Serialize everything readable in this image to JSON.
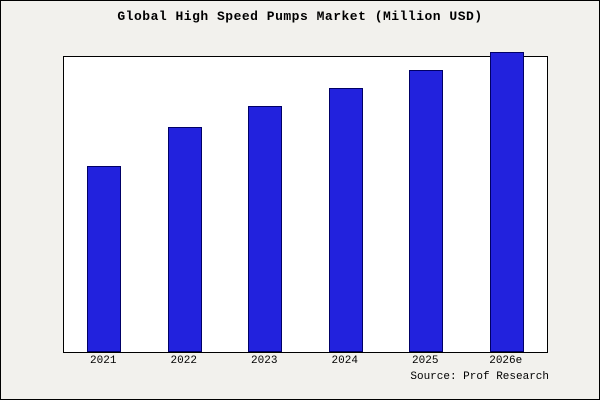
{
  "chart_data": {
    "type": "bar",
    "title": "Global High Speed Pumps Market (Million USD)",
    "categories": [
      "2021",
      "2022",
      "2023",
      "2024",
      "2025",
      "2026e"
    ],
    "values": [
      62,
      75,
      82,
      88,
      94,
      100
    ],
    "xlabel": "",
    "ylabel": "",
    "ylim": [
      0,
      100
    ],
    "grid": false,
    "legend": false,
    "bar_color": "#2222dd",
    "bar_border_color": "#000066",
    "plot_background": "#ffffff",
    "page_background": "#f2f1ed",
    "note": "values are estimated relative heights (percent of tallest bar); no y-axis scale shown"
  },
  "source": {
    "text": "Source: Prof Research"
  }
}
